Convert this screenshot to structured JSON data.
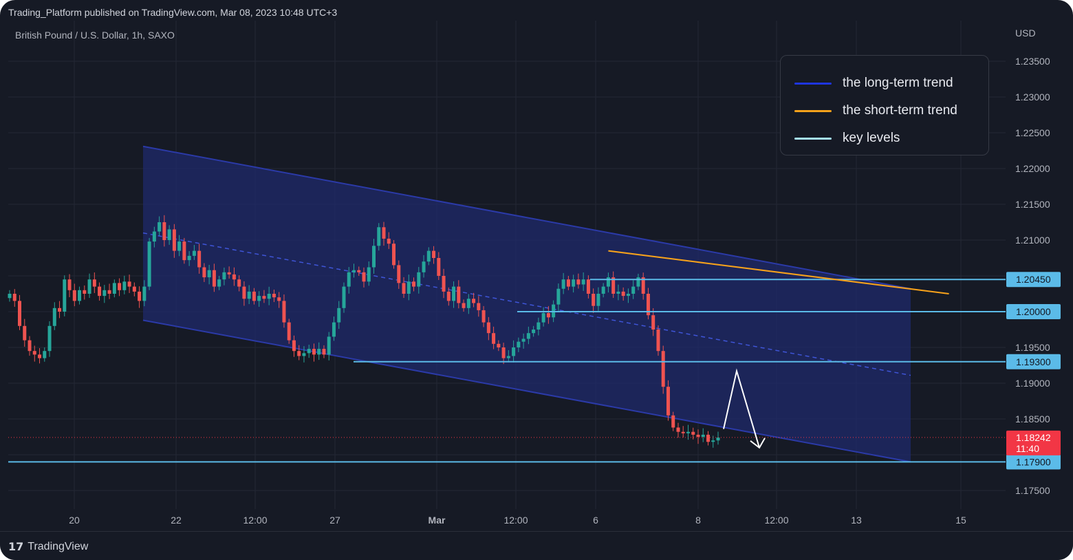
{
  "header": {
    "publisher": "Trading_Platform published on TradingView.com, Mar 08, 2023 10:48 UTC+3",
    "symbol": "British Pound / U.S. Dollar, 1h, SAXO",
    "currency": "USD"
  },
  "footer": {
    "logo_mark": "17",
    "logo_text": "TradingView"
  },
  "legend": {
    "items": [
      {
        "label": "the long-term trend",
        "color": "#1e35e0"
      },
      {
        "label": "the short-term trend",
        "color": "#f7a21b"
      },
      {
        "label": "key levels",
        "color": "#a6e4f7"
      }
    ]
  },
  "colors": {
    "up": "#26a69a",
    "down": "#ef5350",
    "channel": "#2b3aa8",
    "channel_fill": "#1f2a6b",
    "key_level": "#5bbbe8",
    "short_trend": "#f7a21b",
    "price_tag": "#f23645"
  },
  "chart_data": {
    "type": "candlestick",
    "x_ticks": [
      "20",
      "22",
      "12:00",
      "27",
      "Mar",
      "12:00",
      "6",
      "8",
      "12:00",
      "13",
      "15"
    ],
    "y_ticks": [
      "1.23500",
      "1.23000",
      "1.22500",
      "1.22000",
      "1.21500",
      "1.21000",
      "1.20500",
      "1.20000",
      "1.19500",
      "1.19000",
      "1.18500",
      "1.18000",
      "1.17500"
    ],
    "y_range": [
      1.1715,
      1.2395
    ],
    "key_levels": [
      {
        "price": 1.2045,
        "label": "1.20450"
      },
      {
        "price": 1.2,
        "label": "1.20000"
      },
      {
        "price": 1.193,
        "label": "1.19300"
      },
      {
        "price": 1.179,
        "label": "1.17900"
      }
    ],
    "current_price": {
      "price": 1.18242,
      "label": "1.18242",
      "countdown": "11:40"
    },
    "long_term_channel": {
      "upper": [
        [
          "Feb 21",
          1.2231
        ],
        [
          "Mar 9",
          1.2032
        ]
      ],
      "lower": [
        [
          "Feb 21",
          1.1988
        ],
        [
          "Mar 9",
          1.179
        ]
      ],
      "median": [
        [
          "Feb 21",
          1.211
        ],
        [
          "Mar 9",
          1.1911
        ]
      ]
    },
    "short_term_trend": [
      [
        "Mar 1",
        1.2085
      ],
      [
        "Mar 10",
        1.2025
      ]
    ],
    "projection": [
      [
        "Mar 8",
        1.1836
      ],
      [
        "Mar 8",
        1.1917
      ],
      [
        "Mar 9",
        1.1805
      ]
    ],
    "closes": [
      1.2025,
      1.2015,
      1.198,
      1.196,
      1.1945,
      1.194,
      1.1935,
      1.1945,
      1.198,
      1.2005,
      1.2,
      1.2045,
      1.203,
      1.2015,
      1.203,
      1.2025,
      1.2045,
      1.2035,
      1.2022,
      1.203,
      1.2025,
      1.204,
      1.203,
      1.2042,
      1.2035,
      1.2028,
      1.2015,
      1.2035,
      1.2098,
      1.2112,
      1.2125,
      1.21,
      1.2115,
      1.2085,
      1.2098,
      1.2072,
      1.2078,
      1.2085,
      1.2062,
      1.2048,
      1.2058,
      1.2035,
      1.2045,
      1.2055,
      1.2052,
      1.2045,
      1.2035,
      1.2018,
      1.2028,
      1.2015,
      1.2022,
      1.2018,
      1.2025,
      1.202,
      1.2015,
      1.1985,
      1.196,
      1.1945,
      1.1938,
      1.1942,
      1.1948,
      1.194,
      1.1948,
      1.194,
      1.1965,
      1.1985,
      1.2005,
      1.2035,
      1.2055,
      1.2058,
      1.2055,
      1.2042,
      1.2062,
      1.2092,
      1.2118,
      1.2102,
      1.2095,
      1.2065,
      1.204,
      1.2025,
      1.2042,
      1.2035,
      1.2055,
      1.207,
      1.2085,
      1.2075,
      1.205,
      1.2028,
      1.2015,
      1.2035,
      1.2012,
      1.2005,
      1.2018,
      1.2012,
      1.2002,
      1.1985,
      1.197,
      1.1955,
      1.195,
      1.1935,
      1.1938,
      1.195,
      1.1958,
      1.1962,
      1.197,
      1.1975,
      1.1985,
      1.1998,
      1.1992,
      1.201,
      1.2032,
      1.2045,
      1.2035,
      1.2045,
      1.2038,
      1.2045,
      1.2025,
      1.2008,
      1.2025,
      1.2035,
      1.2048,
      1.2025,
      1.2028,
      1.2022,
      1.2025,
      1.2035,
      1.2048,
      1.2025,
      1.1995,
      1.1975,
      1.1945,
      1.1895,
      1.1855,
      1.1838,
      1.1832,
      1.183,
      1.1832,
      1.1828,
      1.1825,
      1.1828,
      1.1818,
      1.182,
      1.1824
    ]
  }
}
